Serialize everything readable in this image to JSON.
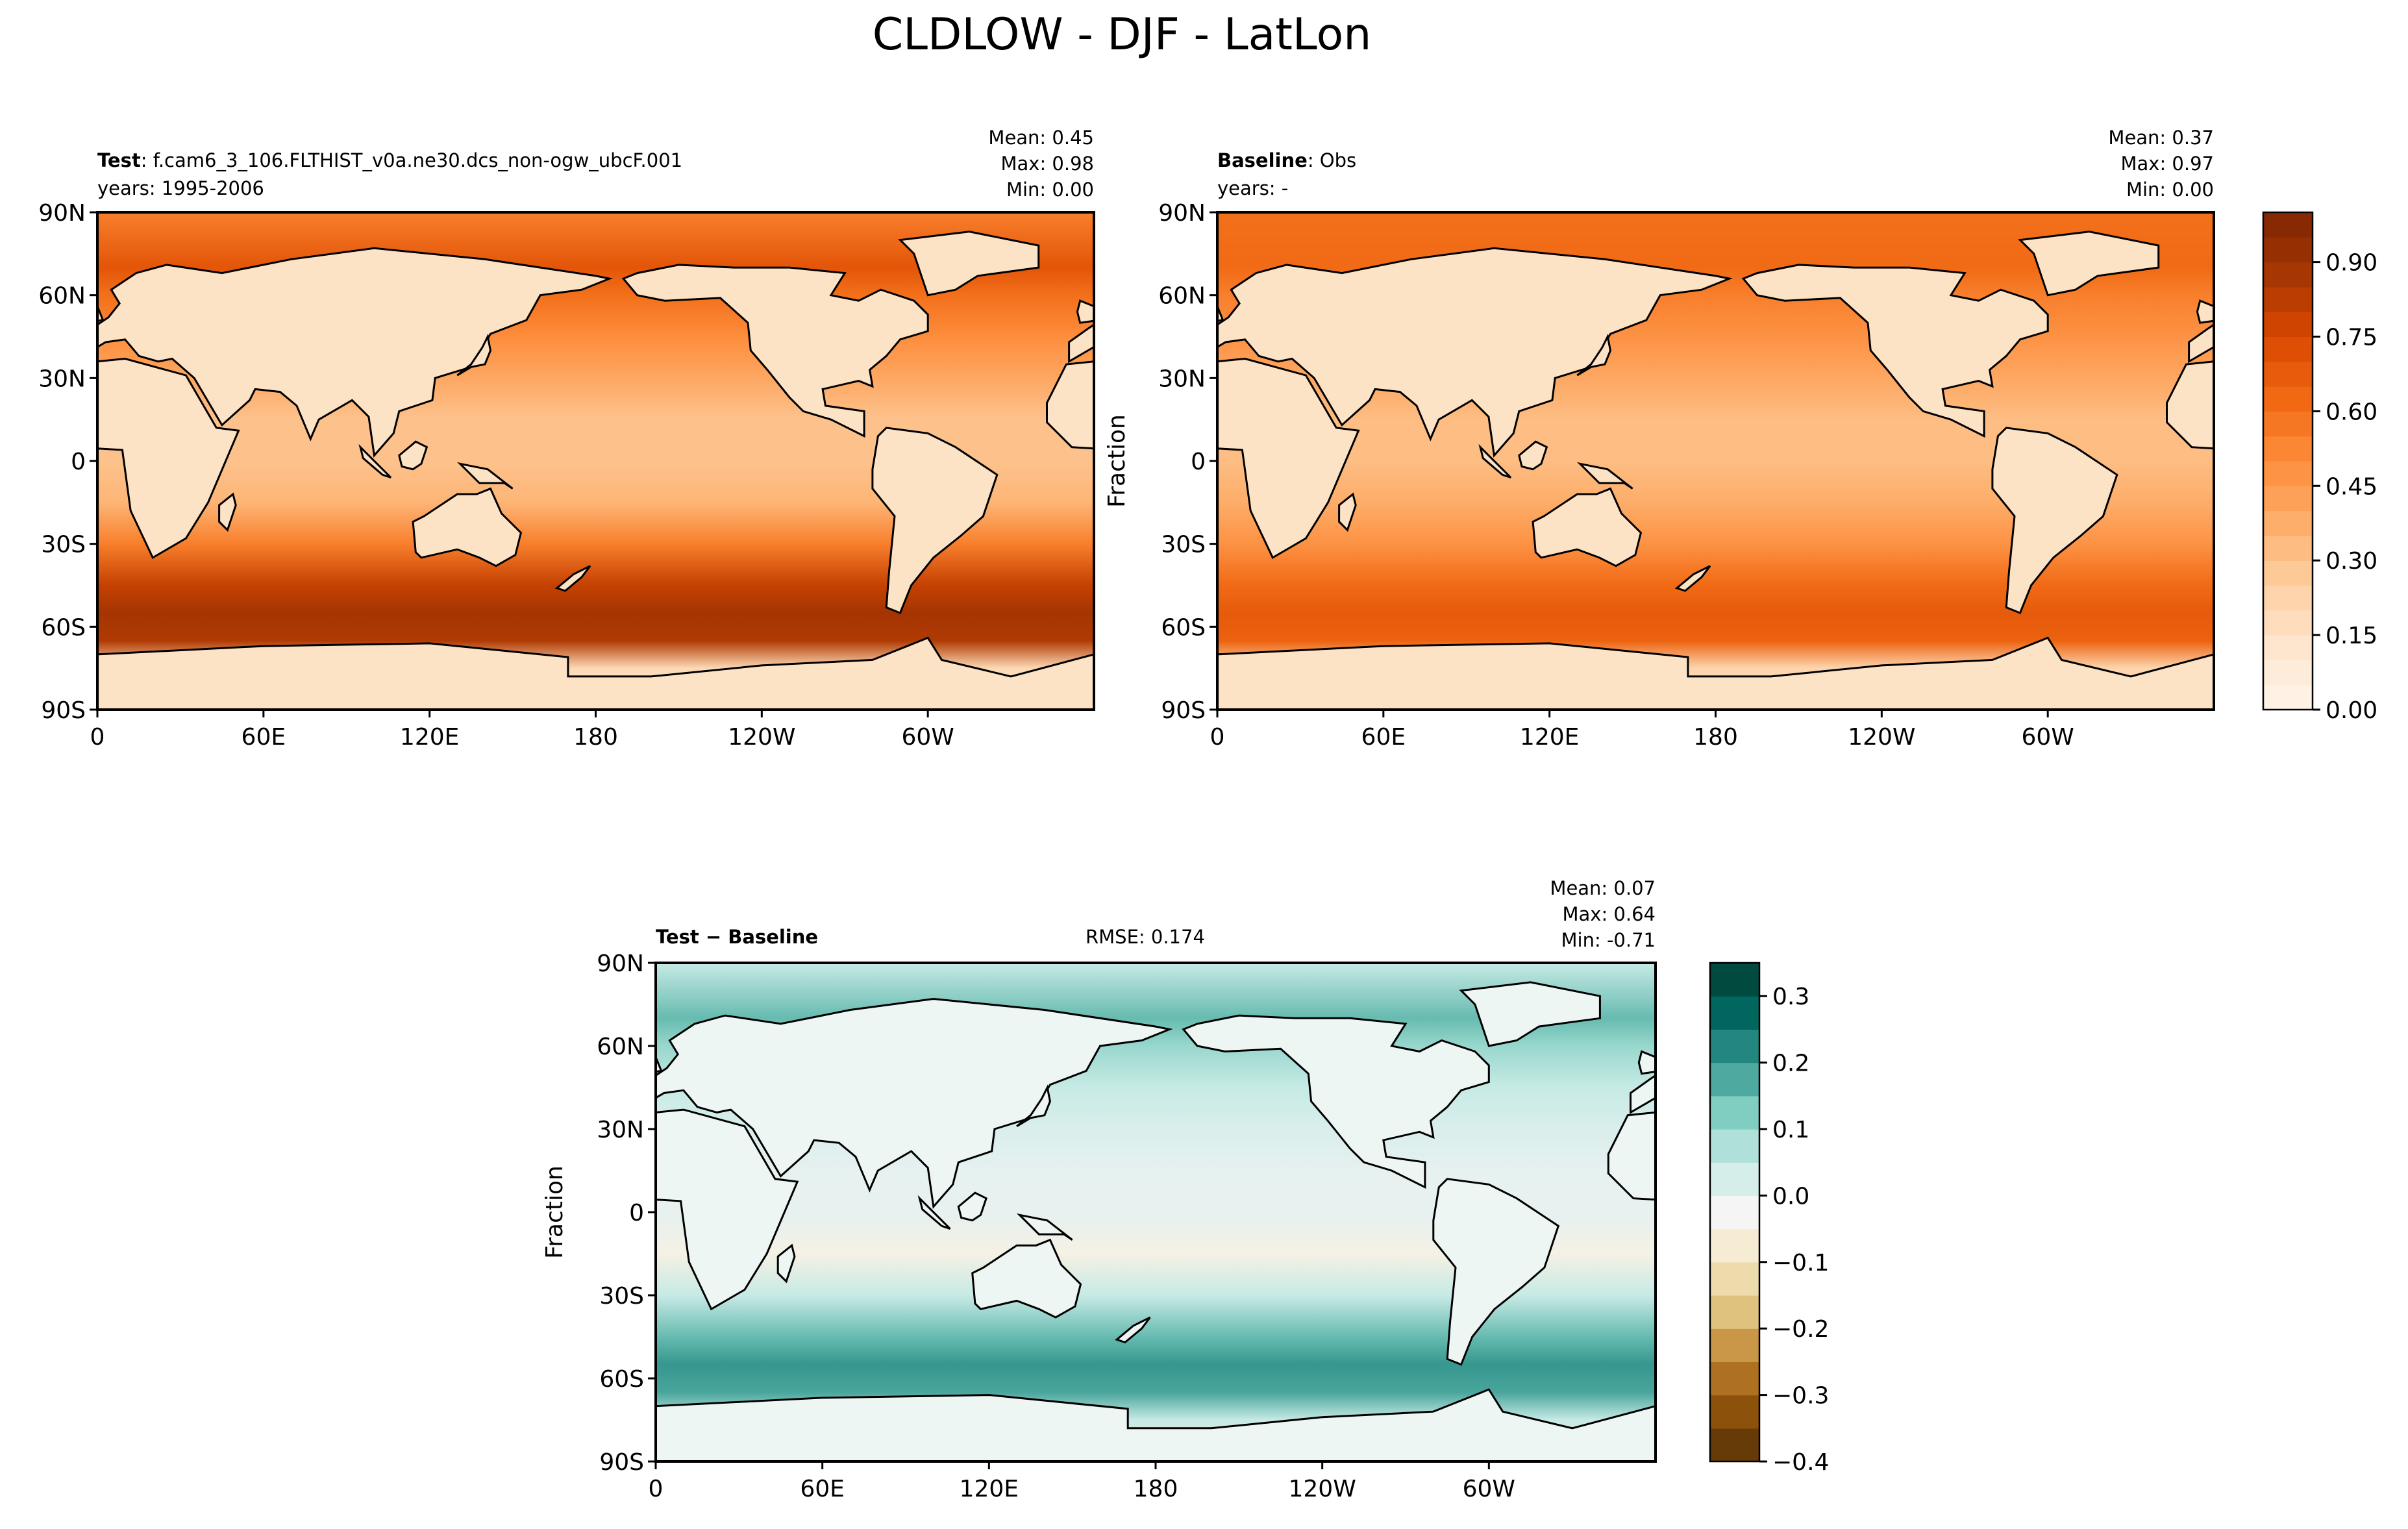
{
  "figure_title": "CLDLOW - DJF - LatLon",
  "colors": {
    "seq": [
      "#fff5eb",
      "#fee6ce",
      "#fdd0a2",
      "#fdae6b",
      "#fd8d3c",
      "#f16913",
      "#d94801",
      "#a63603",
      "#7f2704"
    ],
    "div": [
      "#543005",
      "#8c510a",
      "#bf812d",
      "#dfc27d",
      "#f6e8c3",
      "#f5f5f5",
      "#c7eae5",
      "#80cdc1",
      "#35978f",
      "#01665e",
      "#003c30"
    ],
    "land": "#ffffff",
    "coast": "#000000"
  },
  "panels": {
    "test": {
      "label_bold": "Test",
      "label_text": ": f.cam6_3_106.FLTHIST_v0a.ne30.dcs_non-ogw_ubcF.001",
      "years": "years: 1995-2006",
      "stats": {
        "mean": "Mean:  0.45",
        "max": "Max:  0.98",
        "min": "Min:  0.00"
      }
    },
    "baseline": {
      "label_bold": "Baseline",
      "label_text": ": Obs",
      "years": "years: -",
      "ylabel": "Fraction",
      "stats": {
        "mean": "Mean:  0.37",
        "max": "Max:  0.97",
        "min": "Min:  0.00"
      }
    },
    "diff": {
      "label": "Test − Baseline",
      "rmse": "RMSE: 0.174",
      "ylabel": "Fraction",
      "stats": {
        "mean": "Mean:  0.07",
        "max": "Max:  0.64",
        "min": "Min: -0.71"
      }
    }
  },
  "chart_data": [
    {
      "type": "heatmap",
      "title": "Test: f.cam6_3_106.FLTHIST_v0a.ne30.dcs_non-ogw_ubcF.001",
      "xlabel": "",
      "ylabel": "",
      "x_ticks": [
        "0",
        "60E",
        "120E",
        "180",
        "120W",
        "60W"
      ],
      "x_tick_values": [
        0,
        60,
        120,
        180,
        240,
        300
      ],
      "xlim": [
        0,
        360
      ],
      "y_ticks": [
        "90N",
        "60N",
        "30N",
        "0",
        "30S",
        "60S",
        "90S"
      ],
      "y_tick_values": [
        90,
        60,
        30,
        0,
        -30,
        -60,
        -90
      ],
      "ylim": [
        -90,
        90
      ],
      "zonal_mean_profile": {
        "lat": [
          90,
          70,
          60,
          45,
          30,
          15,
          0,
          -15,
          -30,
          -45,
          -55,
          -65,
          -75,
          -90
        ],
        "value": [
          0.55,
          0.7,
          0.6,
          0.5,
          0.4,
          0.3,
          0.3,
          0.35,
          0.55,
          0.8,
          0.88,
          0.85,
          0.2,
          0.05
        ]
      },
      "mean": 0.45,
      "max": 0.98,
      "min": 0.0
    },
    {
      "type": "heatmap",
      "title": "Baseline: Obs",
      "xlabel": "",
      "ylabel": "Fraction",
      "x_ticks": [
        "0",
        "60E",
        "120E",
        "180",
        "120W",
        "60W"
      ],
      "x_tick_values": [
        0,
        60,
        120,
        180,
        240,
        300
      ],
      "xlim": [
        0,
        360
      ],
      "y_ticks": [
        "90N",
        "60N",
        "30N",
        "0",
        "30S",
        "60S",
        "90S"
      ],
      "y_tick_values": [
        90,
        60,
        30,
        0,
        -30,
        -60,
        -90
      ],
      "ylim": [
        -90,
        90
      ],
      "zonal_mean_profile": {
        "lat": [
          90,
          70,
          60,
          45,
          30,
          15,
          0,
          -15,
          -30,
          -45,
          -55,
          -65,
          -75,
          -90
        ],
        "value": [
          0.6,
          0.62,
          0.55,
          0.48,
          0.4,
          0.32,
          0.32,
          0.38,
          0.48,
          0.62,
          0.68,
          0.65,
          0.22,
          0.15
        ]
      },
      "colorbar": {
        "ticks": [
          "0.00",
          "0.15",
          "0.30",
          "0.45",
          "0.60",
          "0.75",
          "0.90"
        ],
        "tick_values": [
          0.0,
          0.15,
          0.3,
          0.45,
          0.6,
          0.75,
          0.9
        ],
        "range": [
          0.0,
          1.0
        ],
        "levels": 20
      },
      "mean": 0.37,
      "max": 0.97,
      "min": 0.0
    },
    {
      "type": "heatmap",
      "title": "Test − Baseline",
      "xlabel": "",
      "ylabel": "Fraction",
      "x_ticks": [
        "0",
        "60E",
        "120E",
        "180",
        "120W",
        "60W"
      ],
      "x_tick_values": [
        0,
        60,
        120,
        180,
        240,
        300
      ],
      "xlim": [
        0,
        360
      ],
      "y_ticks": [
        "90N",
        "60N",
        "30N",
        "0",
        "30S",
        "60S",
        "90S"
      ],
      "y_tick_values": [
        90,
        60,
        30,
        0,
        -30,
        -60,
        -90
      ],
      "ylim": [
        -90,
        90
      ],
      "zonal_mean_profile": {
        "lat": [
          90,
          70,
          60,
          45,
          30,
          15,
          0,
          -15,
          -30,
          -45,
          -55,
          -65,
          -75,
          -90
        ],
        "value": [
          0.05,
          0.15,
          0.1,
          0.05,
          0.02,
          0.0,
          0.0,
          -0.05,
          0.05,
          0.15,
          0.2,
          0.18,
          0.05,
          -0.1
        ]
      },
      "colorbar": {
        "ticks": [
          "0.3",
          "0.2",
          "0.1",
          "0.0",
          "−0.1",
          "−0.2",
          "−0.3",
          "−0.4"
        ],
        "tick_values": [
          0.3,
          0.2,
          0.1,
          0.0,
          -0.1,
          -0.2,
          -0.3,
          -0.4
        ],
        "range": [
          -0.4,
          0.35
        ]
      },
      "mean": 0.07,
      "max": 0.64,
      "min": -0.71,
      "rmse": 0.174
    }
  ]
}
